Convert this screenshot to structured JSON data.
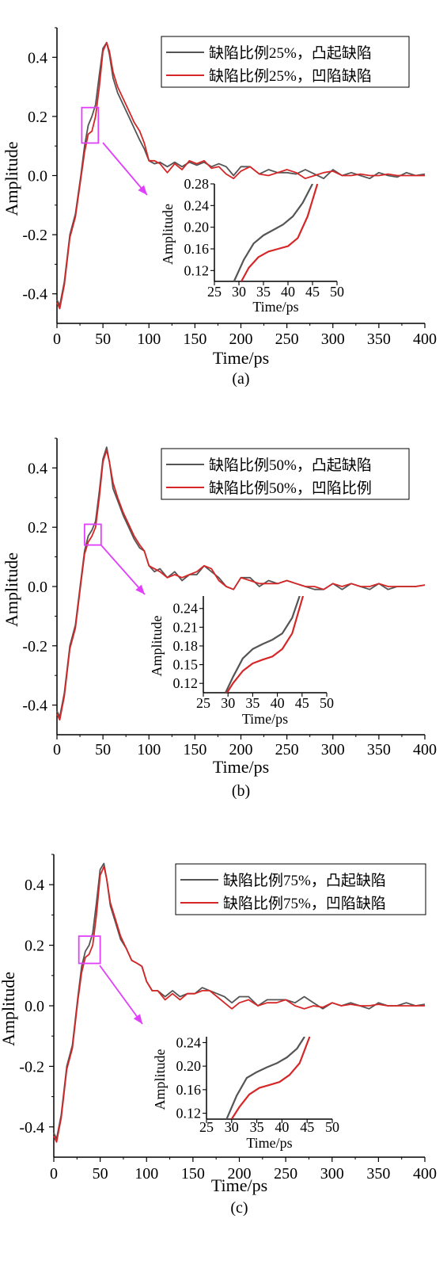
{
  "chart_data": [
    {
      "type": "line",
      "panel_label": "(a)",
      "xlabel": "Time/ps",
      "ylabel": "Amplitude",
      "xlim": [
        0,
        400
      ],
      "ylim": [
        -0.5,
        0.5
      ],
      "xticks": [
        0,
        50,
        100,
        150,
        200,
        250,
        300,
        350,
        400
      ],
      "yticks": [
        -0.4,
        -0.2,
        0.0,
        0.2,
        0.4
      ],
      "ytick_labels": [
        "-0.4",
        "-0.2",
        "0.0",
        "0.2",
        "0.4"
      ],
      "legend_position": "top-right",
      "series": [
        {
          "name": "缺陷比例25%，凸起缺陷",
          "color": "#555555",
          "x": [
            0,
            3,
            8,
            14,
            20,
            26,
            30,
            34,
            38,
            42,
            46,
            50,
            54,
            57,
            61,
            66,
            72,
            78,
            84,
            90,
            95,
            100,
            106,
            112,
            120,
            128,
            136,
            144,
            152,
            160,
            168,
            176,
            184,
            192,
            200,
            210,
            220,
            230,
            240,
            250,
            260,
            270,
            280,
            290,
            300,
            310,
            320,
            330,
            340,
            350,
            360,
            370,
            380,
            390,
            400
          ],
          "y": [
            -0.42,
            -0.44,
            -0.36,
            -0.2,
            -0.13,
            0.0,
            0.1,
            0.17,
            0.2,
            0.24,
            0.34,
            0.43,
            0.45,
            0.41,
            0.33,
            0.28,
            0.24,
            0.2,
            0.16,
            0.12,
            0.09,
            0.05,
            0.04,
            0.045,
            0.03,
            0.045,
            0.03,
            0.045,
            0.035,
            0.045,
            0.03,
            0.04,
            0.03,
            0.0,
            0.03,
            0.03,
            0.005,
            0.02,
            0.01,
            0.01,
            0.005,
            0.02,
            0.005,
            -0.01,
            0.02,
            0.0,
            0.01,
            0.0,
            -0.01,
            0.01,
            0.0,
            -0.005,
            0.01,
            0.0,
            0.005
          ]
        },
        {
          "name": "缺陷比例25%，凹陷缺陷",
          "color": "#d62728",
          "x": [
            0,
            3,
            8,
            14,
            20,
            26,
            30,
            34,
            38,
            42,
            46,
            50,
            54,
            57,
            61,
            66,
            72,
            78,
            84,
            90,
            95,
            100,
            106,
            112,
            120,
            128,
            136,
            144,
            152,
            160,
            168,
            176,
            184,
            192,
            200,
            210,
            220,
            230,
            240,
            250,
            260,
            270,
            280,
            290,
            300,
            310,
            320,
            330,
            340,
            350,
            360,
            370,
            380,
            390,
            400
          ],
          "y": [
            -0.43,
            -0.45,
            -0.37,
            -0.21,
            -0.14,
            -0.01,
            0.08,
            0.14,
            0.15,
            0.2,
            0.3,
            0.42,
            0.45,
            0.42,
            0.35,
            0.3,
            0.26,
            0.22,
            0.18,
            0.15,
            0.11,
            0.05,
            0.05,
            0.04,
            0.01,
            0.04,
            0.02,
            0.05,
            0.04,
            0.05,
            0.025,
            0.03,
            0.005,
            -0.01,
            0.015,
            0.03,
            0.005,
            0.0,
            0.01,
            0.02,
            0.01,
            -0.01,
            0.0,
            0.01,
            0.015,
            0.0,
            0.0,
            0.005,
            0.0,
            0.0,
            0.005,
            0.0,
            0.0,
            0.0,
            0.0
          ]
        }
      ],
      "highlight_box": {
        "x": [
          27,
          45
        ],
        "y": [
          0.11,
          0.23
        ]
      },
      "inset": {
        "xlabel": "Time/ps",
        "ylabel": "Amplitude",
        "xlim": [
          25,
          50
        ],
        "ylim": [
          0.1,
          0.28
        ],
        "xticks": [
          25,
          30,
          35,
          40,
          45,
          50
        ],
        "yticks": [
          0.12,
          0.16,
          0.2,
          0.24,
          0.28
        ],
        "ytick_labels": [
          "0.12",
          "0.16",
          "0.20",
          "0.24",
          "0.28"
        ],
        "series": [
          {
            "color": "#555555",
            "x": [
              29,
              31,
              33,
              35,
              37,
              39,
              41,
              43,
              45
            ],
            "y": [
              0.1,
              0.14,
              0.17,
              0.185,
              0.195,
              0.205,
              0.22,
              0.245,
              0.28
            ]
          },
          {
            "color": "#d62728",
            "x": [
              30.5,
              32,
              34,
              36,
              38,
              40,
              42,
              44,
              46
            ],
            "y": [
              0.1,
              0.125,
              0.145,
              0.155,
              0.16,
              0.165,
              0.18,
              0.22,
              0.28
            ]
          }
        ]
      }
    },
    {
      "type": "line",
      "panel_label": "(b)",
      "xlabel": "Time/ps",
      "ylabel": "Amplitude",
      "xlim": [
        0,
        400
      ],
      "ylim": [
        -0.5,
        0.5
      ],
      "xticks": [
        0,
        50,
        100,
        150,
        200,
        250,
        300,
        350,
        400
      ],
      "yticks": [
        -0.4,
        -0.2,
        0.0,
        0.2,
        0.4
      ],
      "ytick_labels": [
        "-0.4",
        "-0.2",
        "0.0",
        "0.2",
        "0.4"
      ],
      "legend_position": "top-right",
      "series": [
        {
          "name": "缺陷比例50%，凸起缺陷",
          "color": "#555555",
          "x": [
            0,
            3,
            8,
            14,
            20,
            26,
            30,
            34,
            38,
            42,
            46,
            50,
            54,
            57,
            61,
            66,
            72,
            78,
            84,
            90,
            95,
            100,
            106,
            112,
            120,
            128,
            136,
            144,
            152,
            160,
            168,
            176,
            184,
            192,
            200,
            210,
            220,
            230,
            240,
            250,
            260,
            270,
            280,
            290,
            300,
            310,
            320,
            330,
            340,
            350,
            360,
            370,
            380,
            390,
            400
          ],
          "y": [
            -0.42,
            -0.44,
            -0.36,
            -0.2,
            -0.13,
            0.02,
            0.12,
            0.17,
            0.19,
            0.22,
            0.32,
            0.43,
            0.47,
            0.42,
            0.33,
            0.29,
            0.24,
            0.2,
            0.16,
            0.13,
            0.12,
            0.07,
            0.05,
            0.06,
            0.03,
            0.05,
            0.02,
            0.04,
            0.04,
            0.07,
            0.05,
            0.03,
            0.0,
            -0.01,
            0.03,
            0.03,
            0.0,
            0.02,
            0.01,
            0.02,
            0.01,
            0.0,
            -0.01,
            -0.01,
            0.01,
            -0.01,
            0.01,
            0.0,
            -0.01,
            0.01,
            -0.01,
            0.0,
            0.0,
            0.0,
            0.005
          ]
        },
        {
          "name": "缺陷比例50%，凹陷比例",
          "color": "#d62728",
          "x": [
            0,
            3,
            8,
            14,
            20,
            26,
            30,
            34,
            38,
            42,
            46,
            50,
            54,
            57,
            61,
            66,
            72,
            78,
            84,
            90,
            95,
            100,
            106,
            112,
            120,
            128,
            136,
            144,
            152,
            160,
            168,
            176,
            184,
            192,
            200,
            210,
            220,
            230,
            240,
            250,
            260,
            270,
            280,
            290,
            300,
            310,
            320,
            330,
            340,
            350,
            360,
            370,
            380,
            390,
            400
          ],
          "y": [
            -0.43,
            -0.45,
            -0.37,
            -0.21,
            -0.14,
            0.01,
            0.11,
            0.15,
            0.17,
            0.2,
            0.3,
            0.42,
            0.46,
            0.42,
            0.35,
            0.3,
            0.25,
            0.21,
            0.17,
            0.14,
            0.12,
            0.07,
            0.06,
            0.05,
            0.03,
            0.04,
            0.03,
            0.04,
            0.05,
            0.07,
            0.06,
            0.02,
            0.0,
            -0.01,
            0.03,
            0.02,
            0.01,
            0.01,
            0.01,
            0.02,
            0.01,
            0.0,
            0.0,
            -0.01,
            0.01,
            0.0,
            0.01,
            0.0,
            0.0,
            0.01,
            0.0,
            0.0,
            0.0,
            0.0,
            0.005
          ]
        }
      ],
      "highlight_box": {
        "x": [
          30,
          48
        ],
        "y": [
          0.14,
          0.21
        ]
      },
      "inset": {
        "xlabel": "Time/ps",
        "ylabel": "Amplitude",
        "xlim": [
          25,
          50
        ],
        "ylim": [
          0.105,
          0.26
        ],
        "xticks": [
          25,
          30,
          35,
          40,
          45,
          50
        ],
        "yticks": [
          0.12,
          0.15,
          0.18,
          0.21,
          0.24
        ],
        "ytick_labels": [
          "0.12",
          "0.15",
          "0.18",
          "0.21",
          "0.24"
        ],
        "series": [
          {
            "color": "#555555",
            "x": [
              29.5,
              31,
              33,
              35,
              37,
              39,
              41,
              43,
              44.5
            ],
            "y": [
              0.105,
              0.13,
              0.16,
              0.175,
              0.183,
              0.19,
              0.2,
              0.225,
              0.26
            ]
          },
          {
            "color": "#d62728",
            "x": [
              29.8,
              31,
              33,
              35,
              37,
              39,
              41,
              43,
              45.2
            ],
            "y": [
              0.105,
              0.12,
              0.14,
              0.152,
              0.158,
              0.163,
              0.175,
              0.2,
              0.26
            ]
          }
        ]
      }
    },
    {
      "type": "line",
      "panel_label": "(c)",
      "xlabel": "Time/ps",
      "ylabel": "Amplitude",
      "xlim": [
        0,
        400
      ],
      "ylim": [
        -0.5,
        0.5
      ],
      "xticks": [
        0,
        50,
        100,
        150,
        200,
        250,
        300,
        350,
        400
      ],
      "yticks": [
        -0.4,
        -0.2,
        0.0,
        0.2,
        0.4
      ],
      "ytick_labels": [
        "-0.4",
        "-0.2",
        "0.0",
        "0.2",
        "0.4"
      ],
      "legend_position": "top-right",
      "series": [
        {
          "name": "缺陷比例75%，凸起缺陷",
          "color": "#555555",
          "x": [
            0,
            3,
            8,
            14,
            20,
            26,
            30,
            34,
            38,
            42,
            46,
            50,
            54,
            57,
            61,
            66,
            72,
            78,
            84,
            90,
            95,
            100,
            106,
            112,
            120,
            128,
            136,
            144,
            152,
            160,
            168,
            176,
            184,
            192,
            200,
            210,
            220,
            230,
            240,
            250,
            260,
            270,
            280,
            290,
            300,
            310,
            320,
            330,
            340,
            350,
            360,
            370,
            380,
            390,
            400
          ],
          "y": [
            -0.42,
            -0.44,
            -0.36,
            -0.2,
            -0.13,
            0.03,
            0.13,
            0.18,
            0.2,
            0.24,
            0.34,
            0.45,
            0.47,
            0.42,
            0.33,
            0.28,
            0.22,
            0.19,
            0.15,
            0.14,
            0.13,
            0.08,
            0.05,
            0.05,
            0.03,
            0.05,
            0.03,
            0.04,
            0.04,
            0.06,
            0.05,
            0.04,
            0.03,
            0.01,
            0.03,
            0.03,
            0.0,
            0.02,
            0.02,
            0.02,
            0.01,
            0.03,
            0.01,
            -0.01,
            0.01,
            0.0,
            0.01,
            0.0,
            -0.01,
            0.01,
            0.0,
            0.0,
            0.01,
            0.0,
            0.005
          ]
        },
        {
          "name": "缺陷比例75%，凹陷缺陷",
          "color": "#d62728",
          "x": [
            0,
            3,
            8,
            14,
            20,
            26,
            30,
            34,
            38,
            42,
            46,
            50,
            54,
            57,
            61,
            66,
            72,
            78,
            84,
            90,
            95,
            100,
            106,
            112,
            120,
            128,
            136,
            144,
            152,
            160,
            168,
            176,
            184,
            192,
            200,
            210,
            220,
            230,
            240,
            250,
            260,
            270,
            280,
            290,
            300,
            310,
            320,
            330,
            340,
            350,
            360,
            370,
            380,
            390,
            400
          ],
          "y": [
            -0.43,
            -0.45,
            -0.37,
            -0.21,
            -0.14,
            0.02,
            0.11,
            0.16,
            0.17,
            0.2,
            0.3,
            0.43,
            0.46,
            0.42,
            0.34,
            0.29,
            0.23,
            0.19,
            0.15,
            0.14,
            0.13,
            0.08,
            0.05,
            0.05,
            0.02,
            0.04,
            0.02,
            0.04,
            0.04,
            0.05,
            0.05,
            0.03,
            0.01,
            -0.01,
            0.01,
            0.02,
            0.0,
            0.01,
            0.01,
            0.02,
            0.0,
            -0.01,
            0.0,
            -0.005,
            0.01,
            0.0,
            0.005,
            0.0,
            0.0,
            0.005,
            0.0,
            0.0,
            0.0,
            0.0,
            0.0
          ]
        }
      ],
      "highlight_box": {
        "x": [
          27,
          50
        ],
        "y": [
          0.14,
          0.23
        ]
      },
      "inset": {
        "xlabel": "Time/ps",
        "ylabel": "Amplitude",
        "xlim": [
          25,
          50
        ],
        "ylim": [
          0.11,
          0.25
        ],
        "xticks": [
          25,
          30,
          35,
          40,
          45,
          50
        ],
        "yticks": [
          0.12,
          0.16,
          0.2,
          0.24
        ],
        "ytick_labels": [
          "0.12",
          "0.16",
          "0.20",
          "0.24"
        ],
        "series": [
          {
            "color": "#555555",
            "x": [
              29,
              31,
              33,
              35,
              37,
              39,
              41,
              43,
              44.5
            ],
            "y": [
              0.11,
              0.15,
              0.18,
              0.19,
              0.198,
              0.205,
              0.215,
              0.23,
              0.25
            ]
          },
          {
            "color": "#d62728",
            "x": [
              30,
              31.5,
              33.5,
              35.5,
              37.5,
              39.5,
              41.5,
              43.5,
              45.5
            ],
            "y": [
              0.11,
              0.13,
              0.152,
              0.163,
              0.168,
              0.173,
              0.185,
              0.205,
              0.25
            ]
          }
        ]
      }
    }
  ]
}
